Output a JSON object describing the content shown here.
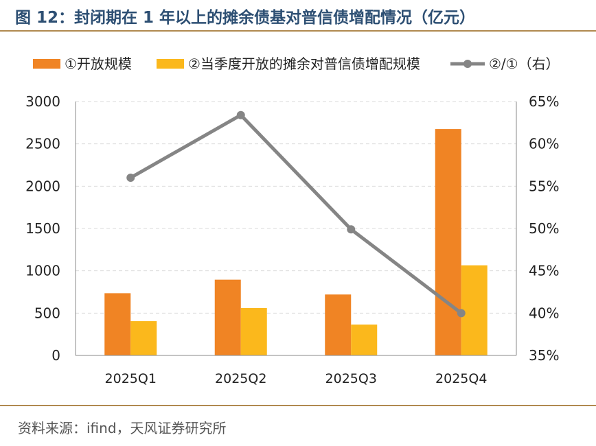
{
  "header": {
    "title": "图 12：封闭期在 1 年以上的摊余债基对普信债增配情况（亿元）"
  },
  "footer": {
    "source": "资料来源：ifind，天风证券研究所"
  },
  "chart_data": {
    "type": "bar",
    "categories": [
      "2025Q1",
      "2025Q2",
      "2025Q3",
      "2025Q4"
    ],
    "series": [
      {
        "name": "①开放规模",
        "type": "bar",
        "axis": "left",
        "color": "#f08424",
        "values": [
          735,
          895,
          720,
          2675
        ]
      },
      {
        "name": "②当季度开放的摊余对普信债增配规模",
        "type": "bar",
        "axis": "left",
        "color": "#fbb81c",
        "values": [
          405,
          560,
          365,
          1065
        ]
      },
      {
        "name": "②/①（右）",
        "type": "line",
        "axis": "right",
        "color": "#858585",
        "values": [
          0.56,
          0.634,
          0.499,
          0.4
        ]
      }
    ],
    "y_left": {
      "min": 0,
      "max": 3000,
      "ticks": [
        0,
        500,
        1000,
        1500,
        2000,
        2500,
        3000
      ],
      "tick_labels": [
        "0",
        "500",
        "1000",
        "1500",
        "2000",
        "2500",
        "3000"
      ]
    },
    "y_right": {
      "min": 0.35,
      "max": 0.65,
      "ticks": [
        0.35,
        0.4,
        0.45,
        0.5,
        0.55,
        0.6,
        0.65
      ],
      "tick_labels": [
        "35%",
        "40%",
        "45%",
        "50%",
        "55%",
        "60%",
        "65%"
      ]
    },
    "grid": true,
    "legend_position": "top"
  }
}
